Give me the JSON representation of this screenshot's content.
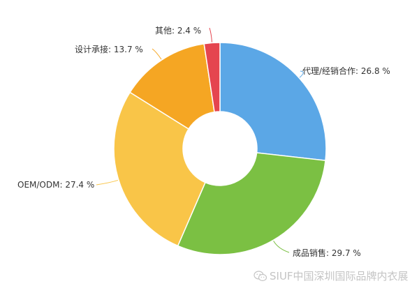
{
  "chart_data": {
    "type": "pie",
    "subtype": "donut",
    "title": "",
    "start_angle_deg": 0,
    "direction": "clockwise",
    "categories": [
      "代理/经销合作",
      "成品销售",
      "OEM/ODM",
      "设计承接",
      "其他"
    ],
    "values": [
      26.8,
      29.7,
      27.4,
      13.7,
      2.4
    ],
    "unit": "%",
    "colors": [
      "#5ba7e6",
      "#7bc043",
      "#f9c548",
      "#f5a623",
      "#e5454f"
    ],
    "labels": [
      {
        "name": "代理/经销合作",
        "value": 26.8,
        "text": "代理/经销合作: 26.8 %"
      },
      {
        "name": "成品销售",
        "value": 29.7,
        "text": "成品销售: 29.7 %"
      },
      {
        "name": "OEM/ODM",
        "value": 27.4,
        "text": "OEM/ODM: 27.4 %"
      },
      {
        "name": "设计承接",
        "value": 13.7,
        "text": "设计承接: 13.7 %"
      },
      {
        "name": "其他",
        "value": 2.4,
        "text": "其他: 2.4 %"
      }
    ],
    "legend": "none",
    "center": [
      315,
      213
    ],
    "outer_radius": 152,
    "inner_radius": 53
  },
  "watermark": {
    "icon": "wechat-icon",
    "text": "SIUF中国深圳国际品牌内衣展"
  }
}
